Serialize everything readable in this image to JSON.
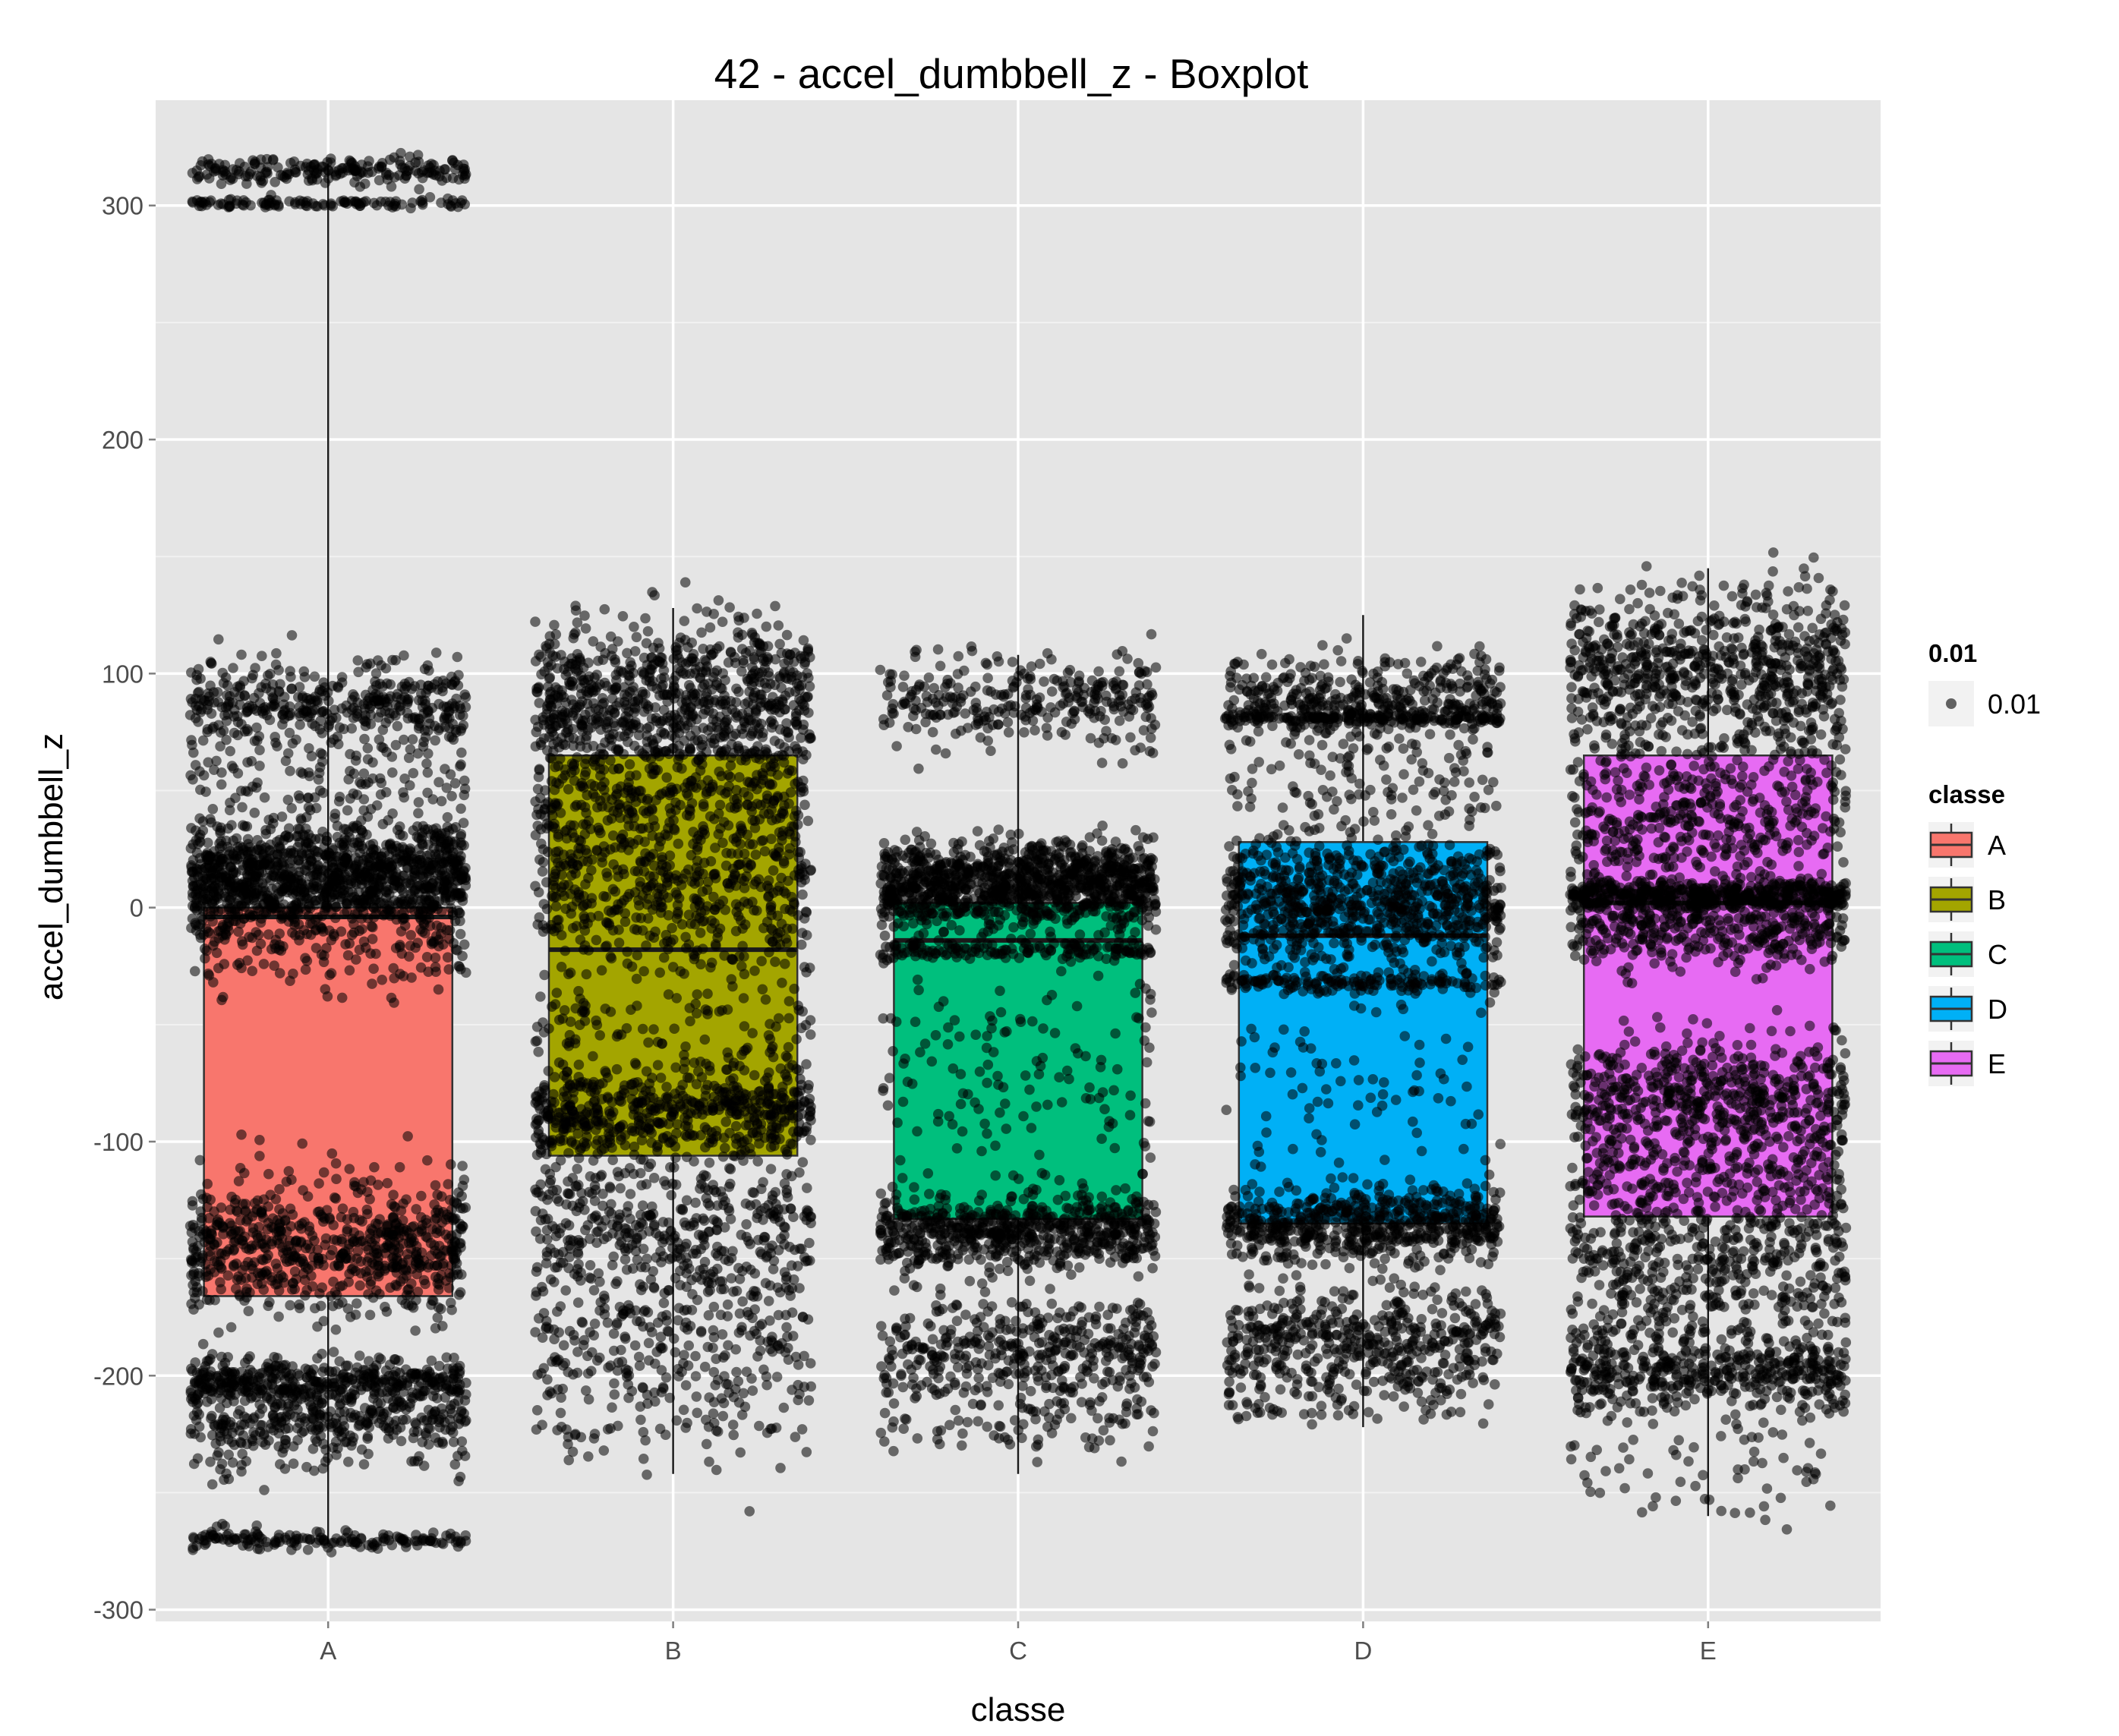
{
  "chart_data": {
    "type": "boxplot",
    "title": "42 - accel_dumbbell_z - Boxplot",
    "xlabel": "classe",
    "ylabel": "accel_dumbbell_z",
    "categories": [
      "A",
      "B",
      "C",
      "D",
      "E"
    ],
    "ylim": [
      -305,
      345
    ],
    "yticks": [
      {
        "value": -300,
        "label": "-300"
      },
      {
        "value": -200,
        "label": "-200"
      },
      {
        "value": -100,
        "label": "-100"
      },
      {
        "value": 0,
        "label": "0"
      },
      {
        "value": 100,
        "label": "100"
      },
      {
        "value": 200,
        "label": "200"
      },
      {
        "value": 300,
        "label": "300"
      }
    ],
    "grid": true,
    "legend_placement": "right",
    "boxes": [
      {
        "category": "A",
        "min": -272,
        "q1": -166,
        "median": -4,
        "q3": 0,
        "max": 318,
        "color": "#F8766D"
      },
      {
        "category": "B",
        "min": -242,
        "q1": -106,
        "median": -18,
        "q3": 65,
        "max": 128,
        "color": "#A3A500"
      },
      {
        "category": "C",
        "min": -242,
        "q1": -133,
        "median": -14,
        "q3": 2,
        "max": 108,
        "color": "#00BF7D"
      },
      {
        "category": "D",
        "min": -222,
        "q1": -135,
        "median": -12,
        "q3": 28,
        "max": 125,
        "color": "#00B0F6"
      },
      {
        "category": "E",
        "min": -260,
        "q1": -132,
        "median": 2,
        "q3": 65,
        "max": 145,
        "color": "#E76BF3"
      }
    ],
    "jitter_clusters": [
      {
        "category": 0,
        "bands": [
          {
            "center": 315,
            "sd": 3,
            "n": 200
          },
          {
            "center": 301,
            "sd": 1,
            "n": 110
          },
          {
            "center": 88,
            "sd": 9,
            "n": 380
          },
          {
            "center": 55,
            "sd": 15,
            "n": 160
          },
          {
            "center": 12,
            "sd": 12,
            "n": 1300
          },
          {
            "center": -20,
            "sd": 10,
            "n": 100
          },
          {
            "center": -145,
            "sd": 14,
            "n": 700
          },
          {
            "center": -203,
            "sd": 5,
            "n": 450
          },
          {
            "center": -220,
            "sd": 6,
            "n": 260
          },
          {
            "center": -235,
            "sd": 6,
            "n": 60
          },
          {
            "center": -270,
            "sd": 2,
            "n": 160
          }
        ]
      },
      {
        "category": 1,
        "bands": [
          {
            "center": 88,
            "sd": 17,
            "n": 700
          },
          {
            "center": 40,
            "sd": 28,
            "n": 700
          },
          {
            "center": 0,
            "sd": 14,
            "n": 200
          },
          {
            "center": -50,
            "sd": 18,
            "n": 160
          },
          {
            "center": -88,
            "sd": 9,
            "n": 520
          },
          {
            "center": -135,
            "sd": 18,
            "n": 430
          },
          {
            "center": -185,
            "sd": 18,
            "n": 280
          },
          {
            "center": -220,
            "sd": 12,
            "n": 70
          }
        ]
      },
      {
        "category": 2,
        "bands": [
          {
            "center": 88,
            "sd": 10,
            "n": 300
          },
          {
            "center": 10,
            "sd": 9,
            "n": 1100
          },
          {
            "center": -18,
            "sd": 2,
            "n": 160
          },
          {
            "center": -70,
            "sd": 25,
            "n": 140
          },
          {
            "center": -138,
            "sd": 8,
            "n": 650
          },
          {
            "center": -190,
            "sd": 12,
            "n": 420
          },
          {
            "center": -222,
            "sd": 8,
            "n": 80
          }
        ]
      },
      {
        "category": 3,
        "bands": [
          {
            "center": 90,
            "sd": 9,
            "n": 380
          },
          {
            "center": 81,
            "sd": 1,
            "n": 160
          },
          {
            "center": 50,
            "sd": 18,
            "n": 150
          },
          {
            "center": 2,
            "sd": 14,
            "n": 800
          },
          {
            "center": -32,
            "sd": 2,
            "n": 160
          },
          {
            "center": -75,
            "sd": 25,
            "n": 90
          },
          {
            "center": -135,
            "sd": 8,
            "n": 600
          },
          {
            "center": -185,
            "sd": 12,
            "n": 480
          },
          {
            "center": -212,
            "sd": 5,
            "n": 60
          }
        ]
      },
      {
        "category": 4,
        "bands": [
          {
            "center": 100,
            "sd": 18,
            "n": 750
          },
          {
            "center": 40,
            "sd": 18,
            "n": 450
          },
          {
            "center": 5,
            "sd": 3,
            "n": 500
          },
          {
            "center": -10,
            "sd": 8,
            "n": 350
          },
          {
            "center": -80,
            "sd": 14,
            "n": 520
          },
          {
            "center": -120,
            "sd": 18,
            "n": 350
          },
          {
            "center": -160,
            "sd": 18,
            "n": 420
          },
          {
            "center": -200,
            "sd": 8,
            "n": 420
          },
          {
            "center": -240,
            "sd": 10,
            "n": 60
          }
        ]
      }
    ],
    "legend": {
      "size_title": "0.01",
      "size_label": "0.01",
      "fill_title": "classe",
      "fill_items": [
        {
          "label": "A",
          "color": "#F8766D"
        },
        {
          "label": "B",
          "color": "#A3A500"
        },
        {
          "label": "C",
          "color": "#00BF7D"
        },
        {
          "label": "D",
          "color": "#00B0F6"
        },
        {
          "label": "E",
          "color": "#E76BF3"
        }
      ]
    }
  }
}
